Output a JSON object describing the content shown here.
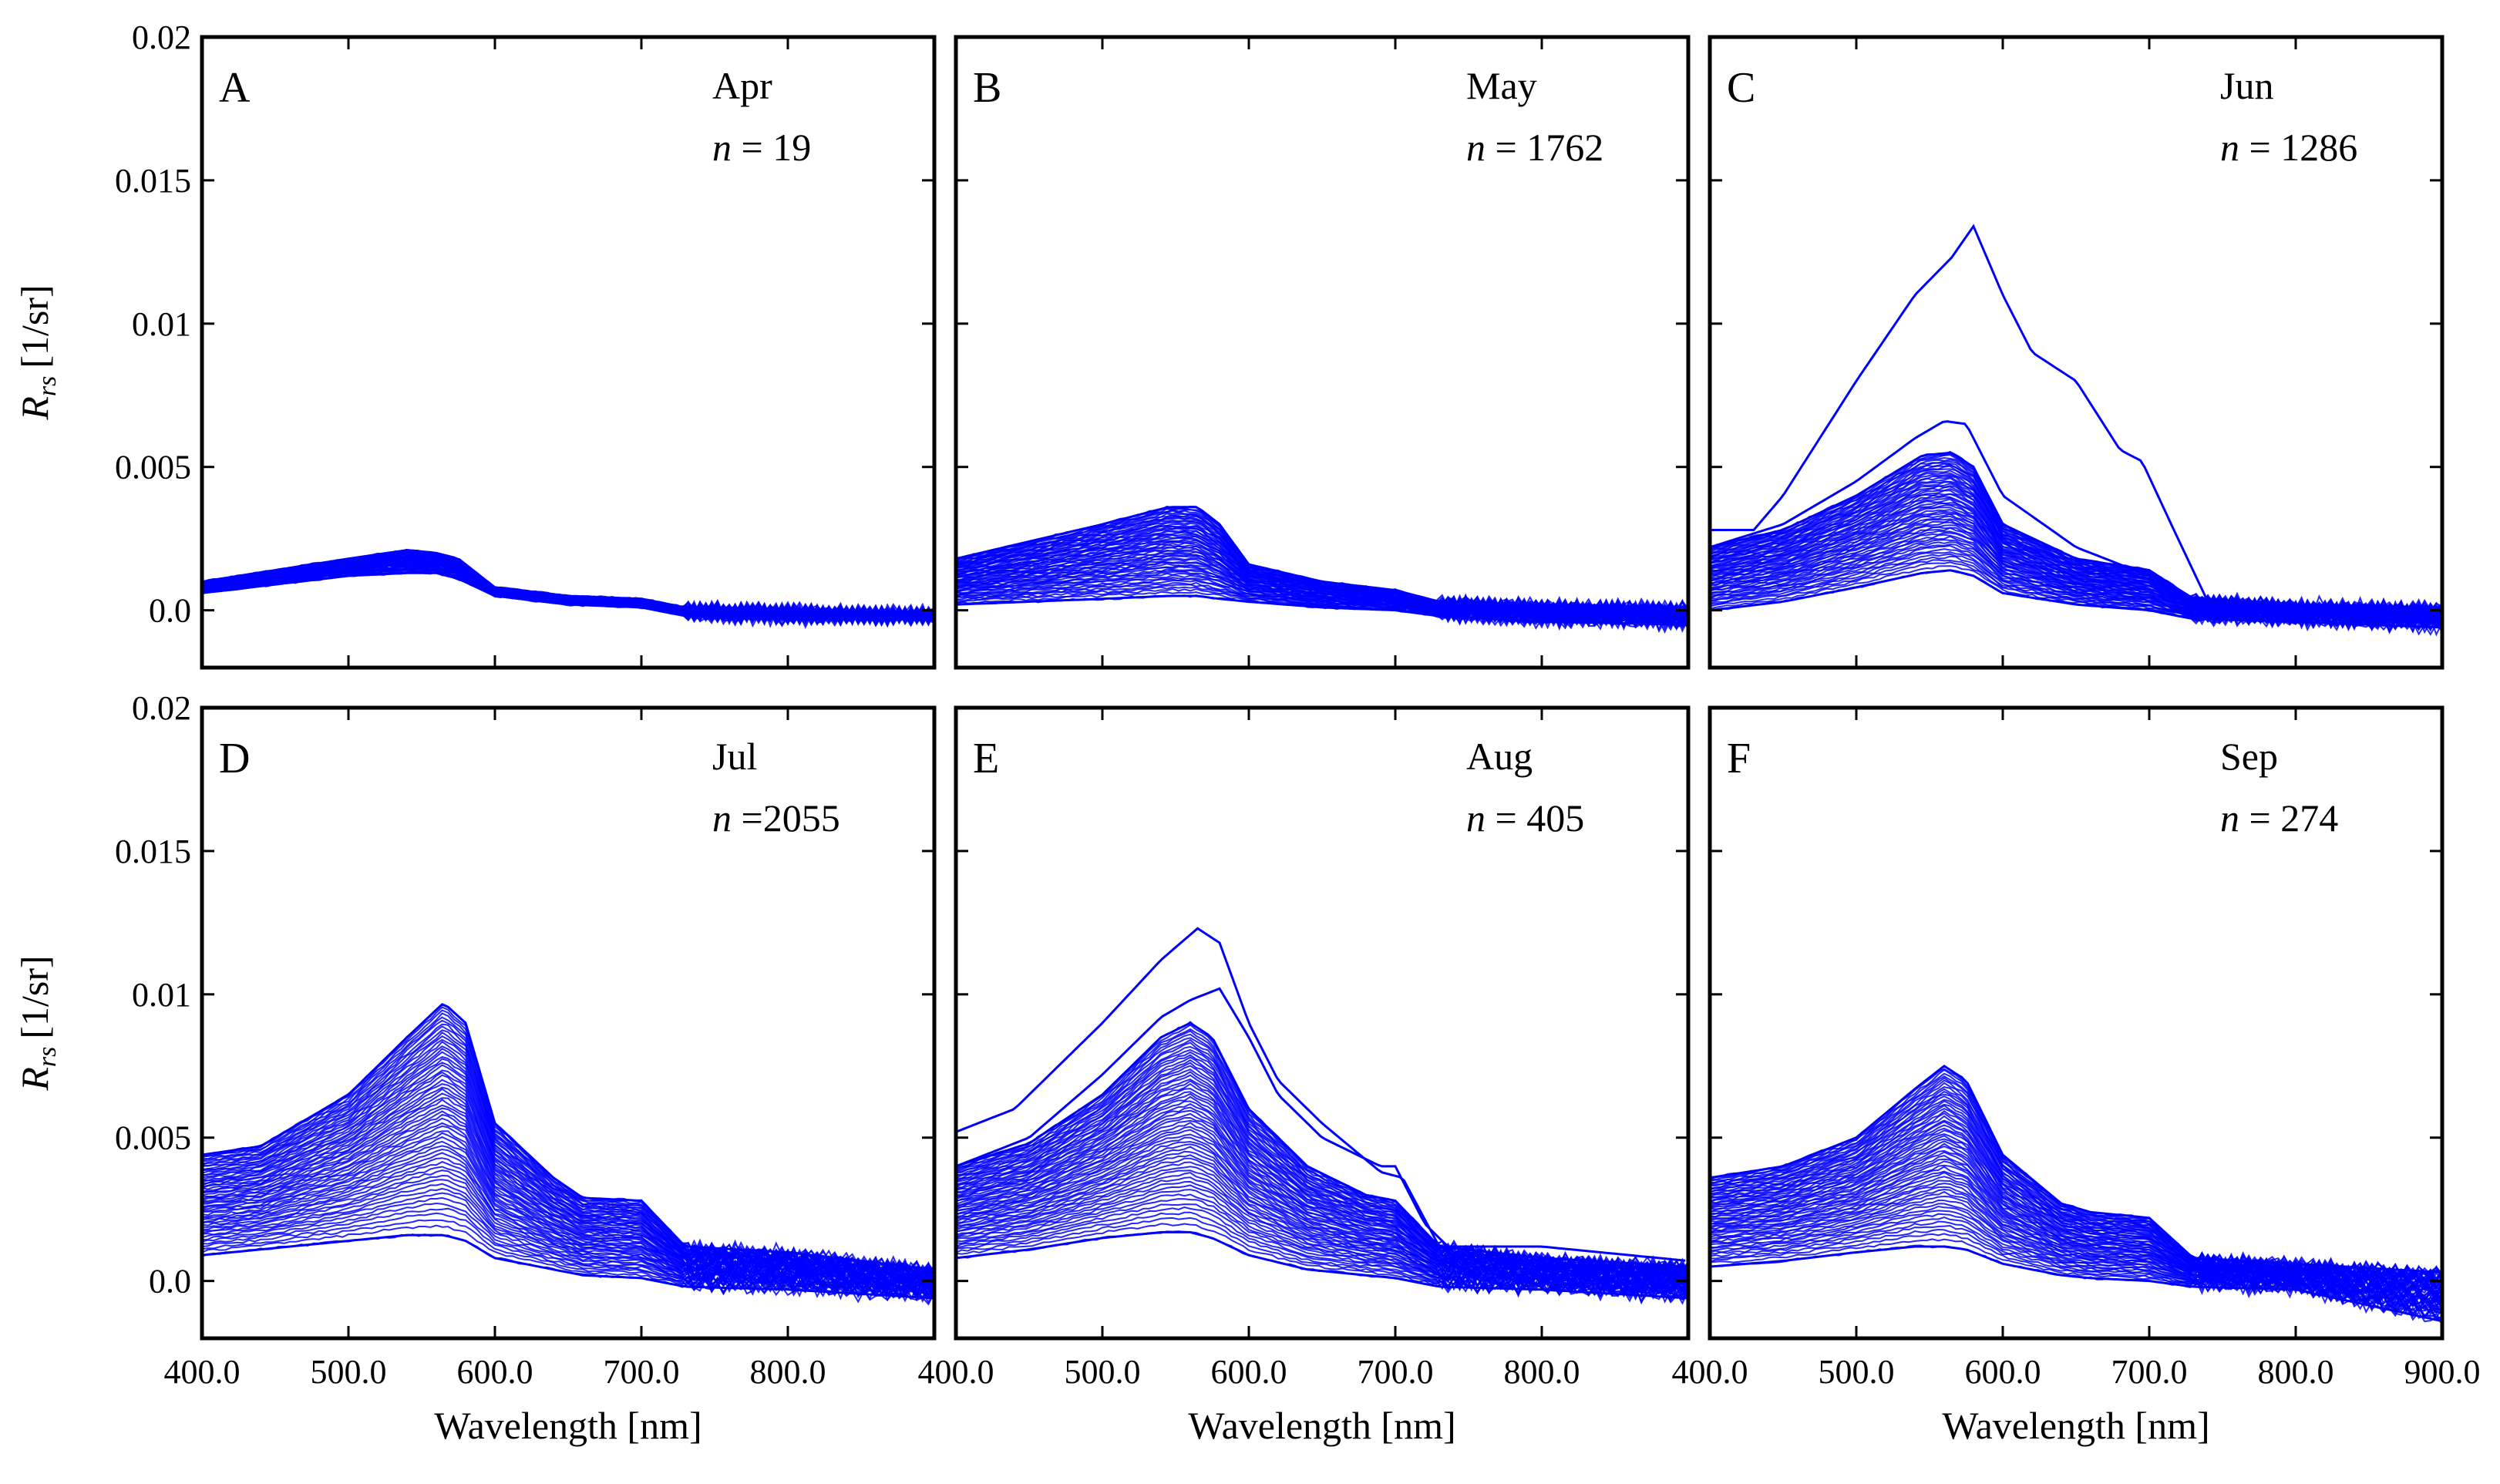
{
  "chart_data": {
    "type": "line",
    "layout": {
      "rows": 2,
      "cols": 3
    },
    "shared": {
      "xlabel": "Wavelength [nm]",
      "ylabel_main": "R",
      "ylabel_sub": "rs",
      "ylabel_unit": "[1/sr]",
      "xlim": [
        400,
        900
      ],
      "ylim": [
        -0.002,
        0.02
      ],
      "xticks": [
        400,
        500,
        600,
        700,
        800,
        900
      ],
      "xtick_labels": [
        "400.0",
        "500.0",
        "600.0",
        "700.0",
        "800.0",
        "900.0"
      ],
      "yticks": [
        0.0,
        0.005,
        0.01,
        0.015,
        0.02
      ],
      "ytick_labels": [
        "0.0",
        "0.005",
        "0.01",
        "0.015",
        "0.02"
      ],
      "series_color": "#0000ff",
      "grid": false,
      "legend": "none"
    },
    "panels": [
      {
        "letter": "A",
        "month": "Apr",
        "n_symbol": "n",
        "n_text": " = 19",
        "envelope": {
          "x": [
            400,
            450,
            500,
            540,
            560,
            575,
            600,
            650,
            700,
            730,
            800,
            900
          ],
          "high": [
            0.001,
            0.0014,
            0.0018,
            0.0021,
            0.002,
            0.0018,
            0.0008,
            0.0005,
            0.0004,
            0.0001,
            0.0,
            -0.0001
          ],
          "low": [
            0.0006,
            0.0009,
            0.0012,
            0.0013,
            0.0013,
            0.0011,
            0.0005,
            0.0002,
            0.0001,
            -0.0002,
            -0.0003,
            -0.0003
          ]
        },
        "outliers": []
      },
      {
        "letter": "B",
        "month": "May",
        "n_symbol": "n",
        "n_text": " = 1762",
        "envelope": {
          "x": [
            400,
            450,
            500,
            545,
            565,
            580,
            600,
            650,
            700,
            730,
            800,
            900
          ],
          "high": [
            0.0018,
            0.0024,
            0.003,
            0.0036,
            0.0036,
            0.003,
            0.0016,
            0.001,
            0.0007,
            0.0003,
            0.0002,
            0.0001
          ],
          "low": [
            0.0002,
            0.0003,
            0.0004,
            0.0005,
            0.0005,
            0.0004,
            0.0003,
            0.0001,
            0.0,
            -0.0002,
            -0.0004,
            -0.0005
          ]
        },
        "outliers": []
      },
      {
        "letter": "C",
        "month": "Jun",
        "n_symbol": "n",
        "n_text": " = 1286",
        "envelope": {
          "x": [
            400,
            450,
            500,
            545,
            565,
            580,
            600,
            650,
            700,
            730,
            800,
            900
          ],
          "high": [
            0.0022,
            0.0028,
            0.004,
            0.0054,
            0.0055,
            0.005,
            0.003,
            0.0018,
            0.0014,
            0.0004,
            0.0002,
            0.0001
          ],
          "low": [
            0.0,
            0.0003,
            0.0008,
            0.0013,
            0.0014,
            0.0012,
            0.0006,
            0.0002,
            0.0,
            -0.0003,
            -0.0004,
            -0.0006
          ]
        },
        "outliers": [
          {
            "x": [
              400,
              430,
              450,
              500,
              540,
              565,
              580,
              600,
              620,
              650,
              680,
              695,
              715,
              740,
              800,
              900
            ],
            "y": [
              0.0028,
              0.0028,
              0.004,
              0.008,
              0.011,
              0.0123,
              0.0134,
              0.011,
              0.009,
              0.008,
              0.0056,
              0.0052,
              0.003,
              0.0003,
              0.0002,
              0.0
            ]
          },
          {
            "x": [
              400,
              450,
              500,
              540,
              560,
              575,
              600,
              650,
              700,
              730,
              800,
              900
            ],
            "y": [
              0.0022,
              0.003,
              0.0045,
              0.006,
              0.0066,
              0.0065,
              0.004,
              0.0022,
              0.0012,
              0.0003,
              0.0001,
              0.0
            ]
          }
        ]
      },
      {
        "letter": "D",
        "month": "Jul",
        "n_symbol": "n",
        "n_text": " =2055",
        "envelope": {
          "x": [
            400,
            440,
            500,
            540,
            565,
            580,
            600,
            640,
            660,
            700,
            730,
            800,
            900
          ],
          "high": [
            0.0044,
            0.0047,
            0.0065,
            0.0085,
            0.0097,
            0.009,
            0.0055,
            0.0036,
            0.0029,
            0.0028,
            0.0012,
            0.001,
            0.0004
          ],
          "low": [
            0.0009,
            0.0011,
            0.0014,
            0.0016,
            0.0016,
            0.0014,
            0.0008,
            0.0004,
            0.0002,
            0.0001,
            -0.0002,
            -0.0003,
            -0.0006
          ]
        },
        "outliers": []
      },
      {
        "letter": "E",
        "month": "Aug",
        "n_symbol": "n",
        "n_text": " = 405",
        "envelope": {
          "x": [
            400,
            450,
            500,
            540,
            560,
            575,
            600,
            640,
            680,
            700,
            730,
            800,
            900
          ],
          "high": [
            0.004,
            0.0048,
            0.0065,
            0.0085,
            0.009,
            0.0085,
            0.006,
            0.004,
            0.003,
            0.0028,
            0.0012,
            0.0008,
            0.0005
          ],
          "low": [
            0.0008,
            0.0011,
            0.0015,
            0.0017,
            0.0017,
            0.0015,
            0.0009,
            0.0004,
            0.0002,
            0.0001,
            -0.0002,
            -0.0003,
            -0.0006
          ]
        },
        "outliers": [
          {
            "x": [
              400,
              440,
              500,
              540,
              565,
              580,
              600,
              620,
              650,
              690,
              705,
              730,
              800,
              900
            ],
            "y": [
              0.0052,
              0.006,
              0.009,
              0.0112,
              0.0123,
              0.0118,
              0.009,
              0.007,
              0.0055,
              0.0038,
              0.0036,
              0.0012,
              0.0012,
              0.0007
            ]
          },
          {
            "x": [
              400,
              450,
              500,
              540,
              560,
              580,
              600,
              620,
              650,
              690,
              700,
              720,
              750,
              900
            ],
            "y": [
              0.004,
              0.005,
              0.0072,
              0.0092,
              0.0098,
              0.0102,
              0.0085,
              0.0065,
              0.005,
              0.004,
              0.004,
              0.002,
              0.0005,
              0.0002
            ]
          }
        ]
      },
      {
        "letter": "F",
        "month": "Sep",
        "n_symbol": "n",
        "n_text": " = 274",
        "envelope": {
          "x": [
            400,
            450,
            500,
            540,
            560,
            575,
            600,
            640,
            660,
            700,
            730,
            800,
            900
          ],
          "high": [
            0.0036,
            0.004,
            0.005,
            0.0067,
            0.0075,
            0.007,
            0.0044,
            0.0027,
            0.0024,
            0.0022,
            0.0008,
            0.0006,
            0.0003
          ],
          "low": [
            0.0005,
            0.0007,
            0.001,
            0.0012,
            0.0012,
            0.0011,
            0.0006,
            0.0002,
            0.0001,
            0.0,
            -0.0002,
            -0.0003,
            -0.0014
          ]
        },
        "outliers": []
      }
    ]
  }
}
